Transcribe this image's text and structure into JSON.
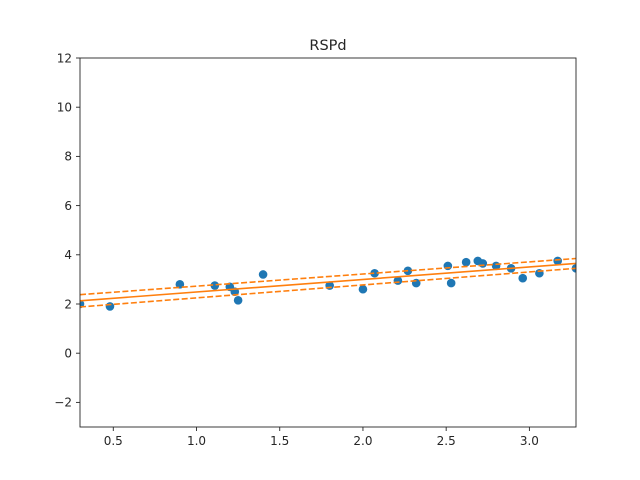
{
  "chart_data": {
    "type": "scatter",
    "title": "RSPd",
    "xlabel": "",
    "ylabel": "",
    "xlim": [
      0.3,
      3.28
    ],
    "ylim": [
      -3,
      12
    ],
    "xticks": [
      0.5,
      1.0,
      1.5,
      2.0,
      2.5,
      3.0
    ],
    "xtick_labels": [
      "0.5",
      "1.0",
      "1.5",
      "2.0",
      "2.5",
      "3.0"
    ],
    "yticks": [
      -2,
      0,
      2,
      4,
      6,
      8,
      10,
      12
    ],
    "ytick_labels": [
      "−2",
      "0",
      "2",
      "4",
      "6",
      "8",
      "10",
      "12"
    ],
    "grid": false,
    "series": [
      {
        "kind": "points",
        "color": "#1f77b4",
        "x": [
          0.3,
          0.48,
          0.9,
          1.11,
          1.2,
          1.23,
          1.25,
          1.4,
          1.8,
          2.0,
          2.07,
          2.21,
          2.27,
          2.32,
          2.51,
          2.53,
          2.62,
          2.69,
          2.72,
          2.8,
          2.89,
          2.96,
          3.06,
          3.17,
          3.28
        ],
        "y": [
          2.0,
          1.9,
          2.8,
          2.75,
          2.7,
          2.5,
          2.15,
          3.2,
          2.75,
          2.6,
          3.25,
          2.95,
          3.35,
          2.85,
          3.55,
          2.85,
          3.7,
          3.75,
          3.65,
          3.55,
          3.45,
          3.05,
          3.25,
          3.75,
          3.45
        ]
      },
      {
        "kind": "fit",
        "style": "solid",
        "color": "#ff7f0e",
        "x": [
          0.3,
          3.28
        ],
        "y": [
          2.13,
          3.65
        ]
      },
      {
        "kind": "fit",
        "style": "dashed",
        "color": "#ff7f0e",
        "x": [
          0.3,
          3.28
        ],
        "y": [
          2.38,
          3.85
        ]
      },
      {
        "kind": "fit",
        "style": "dashed",
        "color": "#ff7f0e",
        "x": [
          0.3,
          3.28
        ],
        "y": [
          1.88,
          3.45
        ]
      }
    ]
  }
}
